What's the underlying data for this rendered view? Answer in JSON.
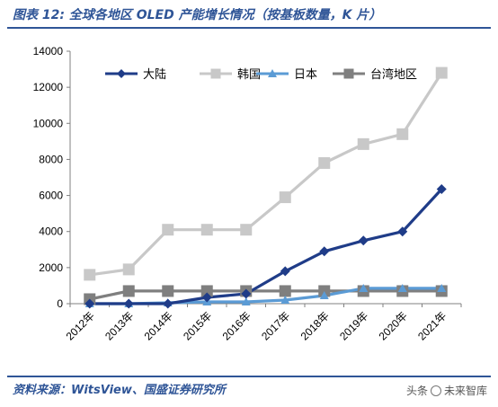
{
  "header": {
    "title": "图表 12:  全球各地区 OLED 产能增长情况（按基板数量，K 片）"
  },
  "footer": {
    "source": "资料来源：WitsView、国盛证券研究所",
    "watermark_left": "头条",
    "watermark_right": "未来智库"
  },
  "chart_data": {
    "type": "line",
    "x": [
      "2012年",
      "2013年",
      "2014年",
      "2015年",
      "2016年",
      "2017年",
      "2018年",
      "2019年",
      "2020年",
      "2021年"
    ],
    "ylim": [
      0,
      14000
    ],
    "yticks": [
      0,
      2000,
      4000,
      6000,
      8000,
      10000,
      12000,
      14000
    ],
    "grid": false,
    "legend": "top",
    "series": [
      {
        "name": "大陆",
        "color": "#1f3c88",
        "marker": "diamond",
        "values": [
          0,
          0,
          0,
          350,
          550,
          1800,
          2900,
          3500,
          4000,
          6350
        ]
      },
      {
        "name": "韩国",
        "color": "#c8c8c8",
        "marker": "square",
        "values": [
          1600,
          1900,
          4100,
          4100,
          4100,
          5900,
          7800,
          8850,
          9400,
          12800
        ]
      },
      {
        "name": "日本",
        "color": "#5b9bd5",
        "marker": "triangle",
        "values": [
          0,
          0,
          50,
          100,
          100,
          200,
          450,
          850,
          850,
          850
        ]
      },
      {
        "name": "台湾地区",
        "color": "#7f7f7f",
        "marker": "square",
        "values": [
          250,
          700,
          700,
          700,
          700,
          700,
          700,
          700,
          700,
          700
        ]
      }
    ]
  }
}
